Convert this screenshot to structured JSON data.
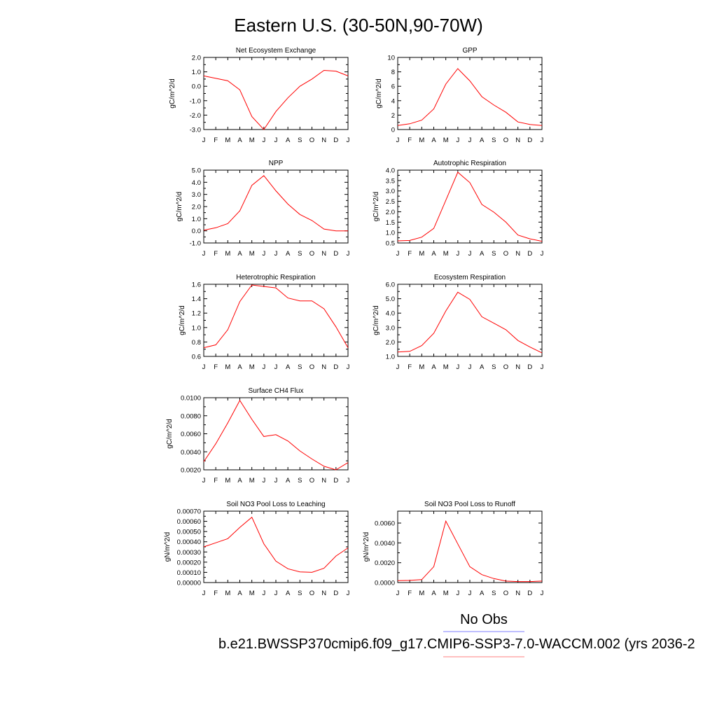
{
  "figure": {
    "title": "Eastern U.S. (30-50N,90-70W)",
    "legend": {
      "entries": [
        {
          "label": "No Obs",
          "color": "#7f7fff"
        },
        {
          "label": "b.e21.BWSSP370cmip6.f09_g17.CMIP6-SSP3-7.0-WACCM.002 (yrs 2036-2",
          "color": "#ff7f7f"
        }
      ],
      "placement": "bottom"
    },
    "line_color": "#ff0000"
  },
  "chart_data": [
    {
      "type": "line",
      "title": "Net Ecosystem Exchange",
      "ylabel": "gC/m^2/d",
      "categories": [
        "J",
        "F",
        "M",
        "A",
        "M",
        "J",
        "J",
        "A",
        "S",
        "O",
        "N",
        "D",
        "J"
      ],
      "values": [
        0.72,
        0.55,
        0.38,
        -0.25,
        -2.1,
        -3.0,
        -1.75,
        -0.8,
        0.0,
        0.5,
        1.1,
        1.05,
        0.72
      ],
      "ylim": [
        -3.0,
        2.0
      ],
      "yticks": [
        "-3.0",
        "-2.0",
        "-1.0",
        "0.0",
        "1.0",
        "2.0"
      ],
      "yticks_values": [
        -3.0,
        -2.0,
        -1.0,
        0.0,
        1.0,
        2.0
      ]
    },
    {
      "type": "line",
      "title": "GPP",
      "ylabel": "gC/m^2/d",
      "categories": [
        "J",
        "F",
        "M",
        "A",
        "M",
        "J",
        "J",
        "A",
        "S",
        "O",
        "N",
        "D",
        "J"
      ],
      "values": [
        0.55,
        0.8,
        1.3,
        2.85,
        6.3,
        8.45,
        6.75,
        4.55,
        3.4,
        2.4,
        1.05,
        0.7,
        0.55
      ],
      "ylim": [
        0,
        10
      ],
      "yticks": [
        "0",
        "2",
        "4",
        "6",
        "8",
        "10"
      ],
      "yticks_values": [
        0,
        2,
        4,
        6,
        8,
        10
      ]
    },
    {
      "type": "line",
      "title": "NPP",
      "ylabel": "gC/m^2/d",
      "categories": [
        "J",
        "F",
        "M",
        "A",
        "M",
        "J",
        "J",
        "A",
        "S",
        "O",
        "N",
        "D",
        "J"
      ],
      "values": [
        0.05,
        0.25,
        0.6,
        1.65,
        3.75,
        4.55,
        3.3,
        2.2,
        1.35,
        0.85,
        0.15,
        0.0,
        0.0
      ],
      "ylim": [
        -1.0,
        5.0
      ],
      "yticks": [
        "-1.0",
        "0.0",
        "1.0",
        "2.0",
        "3.0",
        "4.0",
        "5.0"
      ],
      "yticks_values": [
        -1.0,
        0.0,
        1.0,
        2.0,
        3.0,
        4.0,
        5.0
      ]
    },
    {
      "type": "line",
      "title": "Autotrophic Respiration",
      "ylabel": "gC/m^2/d",
      "categories": [
        "J",
        "F",
        "M",
        "A",
        "M",
        "J",
        "J",
        "A",
        "S",
        "O",
        "N",
        "D",
        "J"
      ],
      "values": [
        0.6,
        0.62,
        0.78,
        1.2,
        2.55,
        3.9,
        3.4,
        2.35,
        1.98,
        1.5,
        0.88,
        0.7,
        0.58
      ],
      "ylim": [
        0.5,
        4.0
      ],
      "yticks": [
        "0.5",
        "1.0",
        "1.5",
        "2.0",
        "2.5",
        "3.0",
        "3.5",
        "4.0"
      ],
      "yticks_values": [
        0.5,
        1.0,
        1.5,
        2.0,
        2.5,
        3.0,
        3.5,
        4.0
      ]
    },
    {
      "type": "line",
      "title": "Heterotrophic Respiration",
      "ylabel": "gC/m^2/d",
      "categories": [
        "J",
        "F",
        "M",
        "A",
        "M",
        "J",
        "J",
        "A",
        "S",
        "O",
        "N",
        "D",
        "J"
      ],
      "values": [
        0.72,
        0.76,
        0.97,
        1.36,
        1.59,
        1.57,
        1.55,
        1.41,
        1.37,
        1.37,
        1.26,
        1.01,
        0.72
      ],
      "ylim": [
        0.6,
        1.6
      ],
      "yticks": [
        "0.6",
        "0.8",
        "1.0",
        "1.2",
        "1.4",
        "1.6"
      ],
      "yticks_values": [
        0.6,
        0.8,
        1.0,
        1.2,
        1.4,
        1.6
      ]
    },
    {
      "type": "line",
      "title": "Ecosystem Respiration",
      "ylabel": "gC/m^2/d",
      "categories": [
        "J",
        "F",
        "M",
        "A",
        "M",
        "J",
        "J",
        "A",
        "S",
        "O",
        "N",
        "D",
        "J"
      ],
      "values": [
        1.3,
        1.35,
        1.75,
        2.6,
        4.15,
        5.45,
        4.95,
        3.75,
        3.3,
        2.85,
        2.1,
        1.65,
        1.25
      ],
      "ylim": [
        1.0,
        6.0
      ],
      "yticks": [
        "1.0",
        "2.0",
        "3.0",
        "4.0",
        "5.0",
        "6.0"
      ],
      "yticks_values": [
        1.0,
        2.0,
        3.0,
        4.0,
        5.0,
        6.0
      ]
    },
    {
      "type": "line",
      "title": "Surface CH4 Flux",
      "ylabel": "gC/m^2/d",
      "categories": [
        "J",
        "F",
        "M",
        "A",
        "M",
        "J",
        "J",
        "A",
        "S",
        "O",
        "N",
        "D",
        "J"
      ],
      "values": [
        0.0029,
        0.0049,
        0.0072,
        0.0097,
        0.0076,
        0.0057,
        0.0059,
        0.0052,
        0.0041,
        0.0032,
        0.0024,
        0.002,
        0.0028
      ],
      "ylim": [
        0.002,
        0.01
      ],
      "yticks": [
        "0.0020",
        "0.0040",
        "0.0060",
        "0.0080",
        "0.0100"
      ],
      "yticks_values": [
        0.002,
        0.004,
        0.006,
        0.008,
        0.01
      ]
    },
    {
      "type": "line",
      "title": "Soil NO3 Pool Loss to Leaching",
      "ylabel": "gN/m^2/d",
      "categories": [
        "J",
        "F",
        "M",
        "A",
        "M",
        "J",
        "J",
        "A",
        "S",
        "O",
        "N",
        "D",
        "J"
      ],
      "values": [
        0.00035,
        0.00039,
        0.00043,
        0.00054,
        0.00064,
        0.00038,
        0.00021,
        0.000135,
        0.000105,
        0.0001,
        0.00014,
        0.00026,
        0.00034
      ],
      "ylim": [
        0.0,
        0.0007
      ],
      "yticks": [
        "0.00000",
        "0.00010",
        "0.00020",
        "0.00030",
        "0.00040",
        "0.00050",
        "0.00060",
        "0.00070"
      ],
      "yticks_values": [
        0.0,
        0.0001,
        0.0002,
        0.0003,
        0.0004,
        0.0005,
        0.0006,
        0.0007
      ]
    },
    {
      "type": "line",
      "title": "Soil NO3 Pool Loss to Runoff",
      "ylabel": "gN/m^2/d",
      "categories": [
        "J",
        "F",
        "M",
        "A",
        "M",
        "J",
        "J",
        "A",
        "S",
        "O",
        "N",
        "D",
        "J"
      ],
      "values": [
        0.0002,
        0.00022,
        0.0003,
        0.0016,
        0.0062,
        0.0039,
        0.0016,
        0.0008,
        0.0004,
        0.00015,
        0.0001,
        0.0001,
        0.00015
      ],
      "ylim": [
        0.0,
        0.0072
      ],
      "yticks": [
        "0.0000",
        "0.0020",
        "0.0040",
        "0.0060"
      ],
      "yticks_values": [
        0.0,
        0.002,
        0.004,
        0.006
      ]
    }
  ]
}
